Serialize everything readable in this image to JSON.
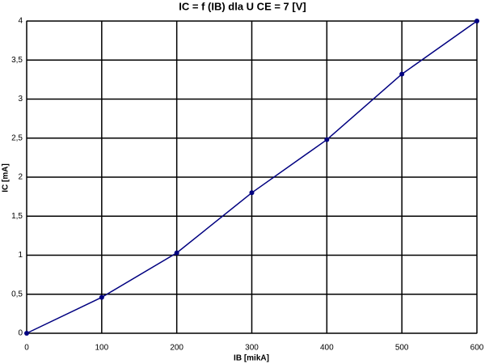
{
  "chart_data": {
    "type": "line",
    "title": "IC = f (IB)  dla U CE = 7 [V]",
    "x_label": "IB [mikA]",
    "y_label": "IC [mA]",
    "x": [
      0,
      100,
      200,
      300,
      400,
      500,
      600
    ],
    "values": [
      0,
      0.46,
      1.03,
      1.8,
      2.48,
      3.32,
      4.0
    ],
    "color": "#000080",
    "xlim": [
      0,
      600
    ],
    "xticks": [
      0,
      100,
      200,
      300,
      400,
      500,
      600
    ],
    "ylim": [
      0,
      4
    ],
    "yticks": [
      0,
      {
        "value": 0.5,
        "label": "0,5"
      },
      1,
      {
        "value": 1.5,
        "label": "1,5"
      },
      2,
      {
        "value": 2.5,
        "label": "2,5"
      },
      3,
      {
        "value": 3.5,
        "label": "3,5"
      },
      4
    ],
    "grid": true
  }
}
